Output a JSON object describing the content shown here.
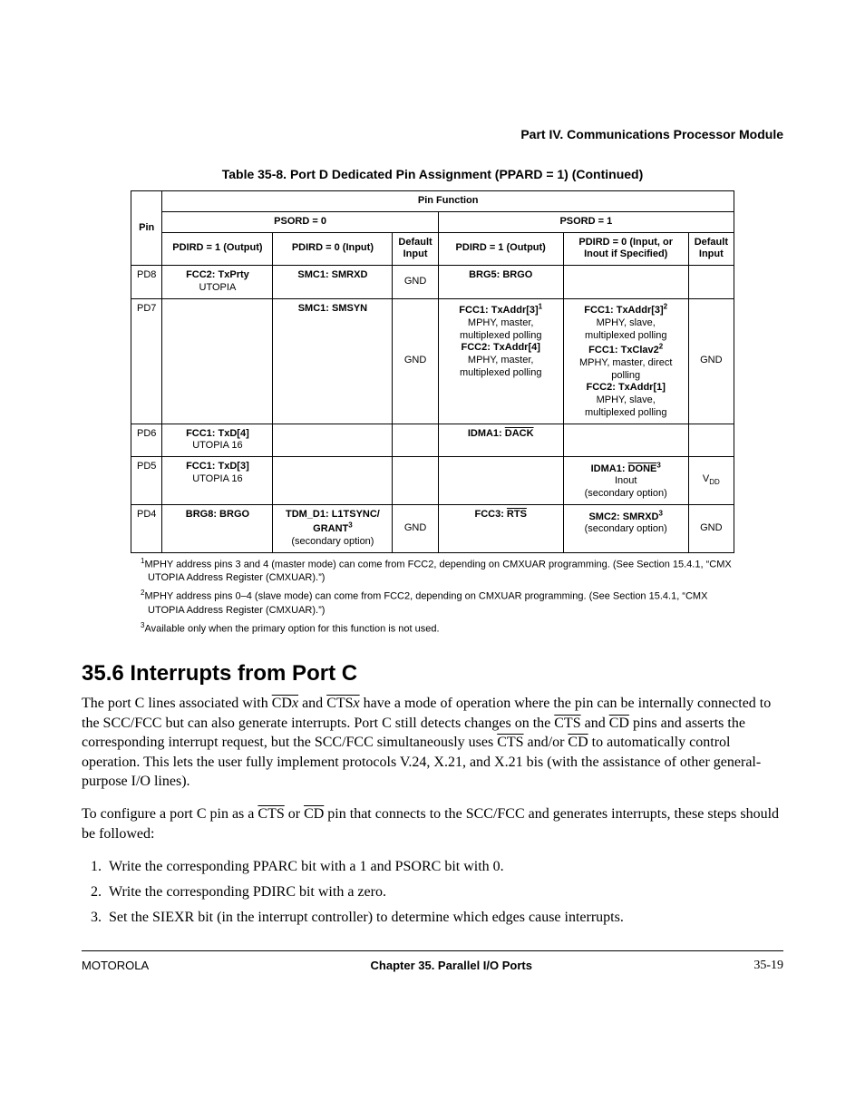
{
  "header": {
    "part": "Part IV.  Communications Processor Module"
  },
  "table": {
    "caption": "Table 35-8. Port D Dedicated Pin Assignment (PPARD = 1) (Continued)",
    "head": {
      "pin": "Pin",
      "pinfunc": "Pin Function",
      "psord0": "PSORD = 0",
      "psord1": "PSORD = 1",
      "pd1out": "PDIRD = 1 (Output)",
      "pd0in": "PDIRD = 0 (Input)",
      "defin": "Default Input",
      "pd0inout": "PDIRD = 0 (Input, or Inout if Specified)"
    },
    "rows": [
      {
        "pin": "PD8",
        "a_out_html": "<span class='cell-b'>FCC2: TxPrty</span><br><span class='cell-plain'>UTOPIA</span>",
        "a_in_html": "<span class='cell-b'>SMC1: SMRXD</span>",
        "a_def": "GND",
        "b_out_html": "<span class='cell-b'>BRG5: BRGO</span>",
        "b_in_html": "",
        "b_def": ""
      },
      {
        "pin": "PD7",
        "a_out_html": "",
        "a_in_html": "<span class='cell-b'>SMC1: SMSYN</span>",
        "a_def": "GND",
        "b_out_html": "<span class='cell-b'>FCC1: TxAddr[3]<span class='sup'>1</span></span><br><span class='cell-plain'>MPHY, master,<br>multiplexed polling</span><br><span class='cell-b'>FCC2: TxAddr[4]</span><br><span class='cell-plain'>MPHY, master,<br>multiplexed polling</span>",
        "b_in_html": "<span class='cell-b'>FCC1: TxAddr[3]<span class='sup'>2</span></span><br><span class='cell-plain'>MPHY, slave,<br>multiplexed polling</span><br><span class='cell-b'>FCC1: TxClav2<span class='sup'>2</span></span><br><span class='cell-plain'>MPHY, master, direct<br>polling</span><br><span class='cell-b'>FCC2: TxAddr[1]</span><br><span class='cell-plain'>MPHY, slave,<br>multiplexed polling</span>",
        "b_def": "GND"
      },
      {
        "pin": "PD6",
        "a_out_html": "<span class='cell-b'>FCC1: TxD[4]</span><br><span class='cell-plain'>UTOPIA 16</span>",
        "a_in_html": "",
        "a_def": "",
        "b_out_html": "<span class='cell-b'>IDMA1: <span class='over'>DACK</span></span>",
        "b_in_html": "",
        "b_def": ""
      },
      {
        "pin": "PD5",
        "a_out_html": "<span class='cell-b'>FCC1: TxD[3]</span><br><span class='cell-plain'>UTOPIA 16</span>",
        "a_in_html": "",
        "a_def": "",
        "b_out_html": "",
        "b_in_html": "<span class='cell-b'>IDMA1: <span class='over'>DONE</span><span class='sup'>3</span></span><br><span class='cell-plain'>Inout<br>(secondary option)</span>",
        "b_def_html": "V<span class='sub'>DD</span>"
      },
      {
        "pin": "PD4",
        "a_out_html": "<span class='cell-b'>BRG8: BRGO</span>",
        "a_in_html": "<span class='cell-b'>TDM_D1: L1TSYNC/<br>GRANT<span class='sup'>3</span></span><br><span class='cell-plain'>(secondary option)</span>",
        "a_def": "GND",
        "b_out_html": "<span class='cell-b'>FCC3: <span class='over'>RTS</span></span>",
        "b_in_html": "<span class='cell-b'>SMC2: SMRXD<span class='sup'>3</span></span><br><span class='cell-plain'>(secondary option)</span>",
        "b_def": "GND"
      }
    ]
  },
  "footnotes": {
    "fn1": "MPHY address pins 3 and 4 (master mode) can come from FCC2, depending on CMXUAR programming. (See Section 15.4.1, “CMX UTOPIA Address Register (CMXUAR).”)",
    "fn2": "MPHY address pins 0–4 (slave mode) can come from FCC2, depending on CMXUAR programming. (See Section 15.4.1, “CMX UTOPIA Address Register (CMXUAR).”)",
    "fn3": "Available only when the primary option for this function is not used."
  },
  "section": {
    "heading": "35.6  Interrupts from Port C",
    "p1_html": "The port C lines associated with <span class='over'>CD<i>x</i></span> and <span class='over'>CTS<i>x</i></span> have a mode of operation where the pin can be internally connected to the SCC/FCC but can also generate interrupts. Port C still detects changes on the <span class='over'>CTS</span> and <span class='over'>CD</span> pins and asserts the corresponding interrupt request, but the SCC/FCC simultaneously uses <span class='over'>CTS</span> and/or <span class='over'>CD</span> to automatically control operation. This lets the user fully implement protocols V.24, X.21, and X.21 bis (with the assistance of other general-purpose I/O lines).",
    "p2_html": "To configure a port C pin as a <span class='over'>CTS</span> or <span class='over'>CD</span> pin that connects to the SCC/FCC and generates interrupts, these steps should be followed:",
    "steps": [
      "Write the corresponding PPARC bit with a 1 and PSORC bit with 0.",
      "Write the corresponding PDIRC bit with a zero.",
      "Set the SIEXR bit (in the interrupt controller) to determine which edges cause interrupts."
    ]
  },
  "footer": {
    "left": "MOTOROLA",
    "center": "Chapter 35.  Parallel I/O Ports",
    "right": "35-19"
  }
}
